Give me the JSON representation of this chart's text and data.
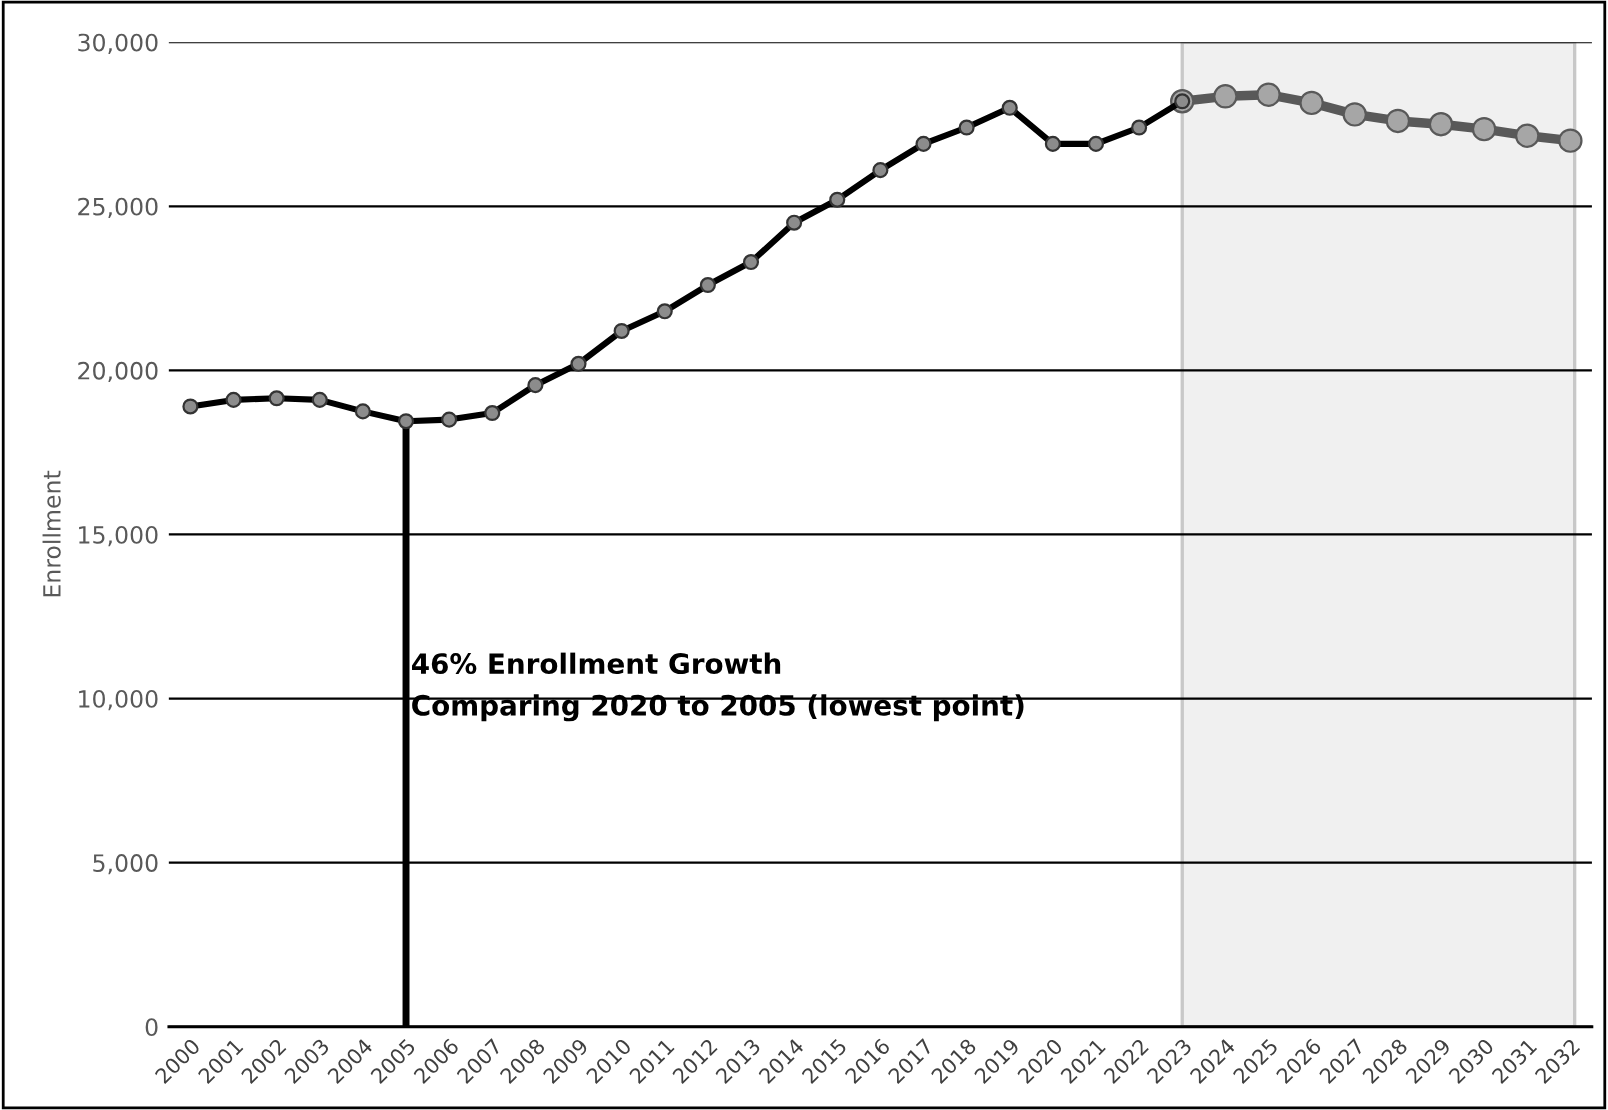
{
  "chart_data": {
    "type": "line",
    "ylabel": "Enrollment",
    "categories": [
      "2000",
      "2001",
      "2002",
      "2003",
      "2004",
      "2005",
      "2006",
      "2007",
      "2008",
      "2009",
      "2010",
      "2011",
      "2012",
      "2013",
      "2014",
      "2015",
      "2016",
      "2017",
      "2018",
      "2019",
      "2020",
      "2021",
      "2022",
      "2023",
      "2024",
      "2025",
      "2026",
      "2027",
      "2028",
      "2029",
      "2030",
      "2031",
      "2032"
    ],
    "series": [
      {
        "color": "#000000",
        "values": [
          18900,
          19100,
          19150,
          19100,
          18750,
          18450,
          18500,
          18700,
          19550,
          20200,
          21200,
          21800,
          22600,
          23300,
          24500,
          25200,
          26100,
          26900,
          27400,
          28000,
          26900,
          26900,
          27400,
          28200,
          null,
          null,
          null,
          null,
          null,
          null,
          null,
          null,
          null
        ]
      },
      {
        "color": "#595959",
        "values": [
          null,
          null,
          null,
          null,
          null,
          null,
          null,
          null,
          null,
          null,
          null,
          null,
          null,
          null,
          null,
          null,
          null,
          null,
          null,
          null,
          null,
          null,
          null,
          28200,
          28350,
          28400,
          28150,
          27800,
          27600,
          27500,
          27350,
          27150,
          27000
        ]
      }
    ],
    "ylim": [
      0,
      30000
    ],
    "yticks": [
      {
        "value": 0,
        "label": "0"
      },
      {
        "value": 5000,
        "label": "5,000"
      },
      {
        "value": 10000,
        "label": "10,000"
      },
      {
        "value": 15000,
        "label": "15,000"
      },
      {
        "value": 20000,
        "label": "20,000"
      },
      {
        "value": 25000,
        "label": "25,000"
      },
      {
        "value": 30000,
        "label": "30,000"
      }
    ],
    "grid": "y",
    "marker": "circle",
    "line_style": "solid",
    "ref_lines": [
      {
        "axis": "x",
        "value": "2005",
        "color": "#000000"
      }
    ],
    "bands": [
      {
        "axis": "x",
        "from": "2023",
        "to": "2032",
        "color": "#f0f0f0"
      }
    ],
    "annotations": [
      "46% Enrollment Growth\nComparing 2020 to 2005 (lowest point)"
    ]
  }
}
